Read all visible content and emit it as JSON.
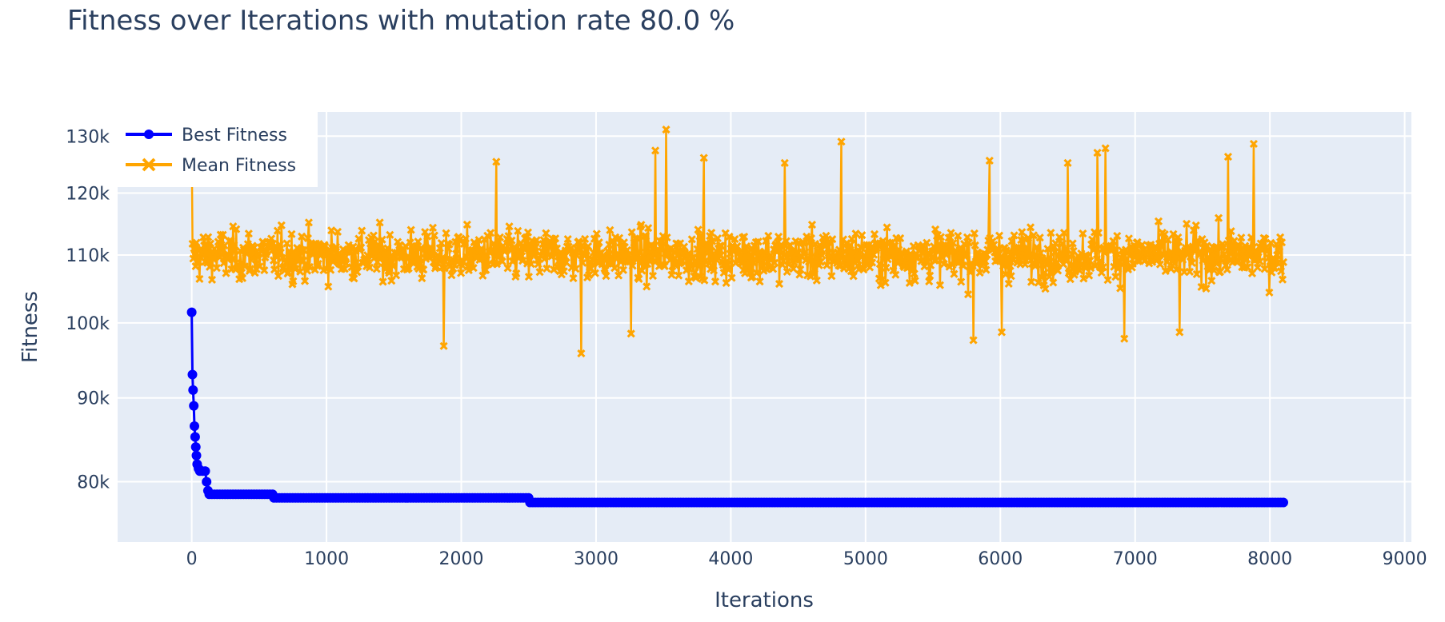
{
  "chart_data": {
    "type": "line",
    "title": "Fitness over Iterations with mutation rate 80.0 %",
    "xlabel": "Iterations",
    "ylabel": "Fitness",
    "xlim": [
      -550,
      9050
    ],
    "ylim": [
      73500,
      134500
    ],
    "y_scale": "log",
    "grid": true,
    "legend_position": "top-left",
    "x_ticks": [
      0,
      1000,
      2000,
      3000,
      4000,
      5000,
      6000,
      7000,
      8000,
      9000
    ],
    "x_tick_labels": [
      "0",
      "1000",
      "2000",
      "3000",
      "4000",
      "5000",
      "6000",
      "7000",
      "8000",
      "9000"
    ],
    "y_ticks": [
      80000,
      90000,
      100000,
      110000,
      120000,
      130000
    ],
    "y_tick_labels": [
      "80k",
      "90k",
      "100k",
      "110k",
      "120k",
      "130k"
    ],
    "series": [
      {
        "name": "Best Fitness",
        "color": "#0000ff",
        "marker": "circle",
        "x": [
          0,
          5,
          10,
          15,
          20,
          25,
          30,
          35,
          40,
          50,
          60,
          80,
          100,
          110,
          120,
          130,
          600,
          610,
          2500,
          2510,
          8100
        ],
        "y": [
          101500,
          93000,
          91000,
          89000,
          86500,
          85200,
          84000,
          83000,
          82000,
          81500,
          81200,
          81200,
          81200,
          80000,
          79000,
          78600,
          78600,
          78200,
          78200,
          77700,
          77700
        ]
      },
      {
        "name": "Mean Fitness",
        "color": "#ffa500",
        "marker": "x",
        "x_range": [
          0,
          8100
        ],
        "point_count": 8100,
        "typical_band": [
          101000,
          120000
        ],
        "center": 110000,
        "min_points": [
          {
            "x": 2890,
            "y": 95800
          },
          {
            "x": 1870,
            "y": 96800
          },
          {
            "x": 5800,
            "y": 97600
          },
          {
            "x": 6920,
            "y": 97800
          },
          {
            "x": 3260,
            "y": 98500
          },
          {
            "x": 7330,
            "y": 98700
          },
          {
            "x": 6010,
            "y": 98700
          }
        ],
        "max_points": [
          {
            "x": 3520,
            "y": 131200
          },
          {
            "x": 0,
            "y": 128500
          },
          {
            "x": 4820,
            "y": 129000
          },
          {
            "x": 7880,
            "y": 128600
          },
          {
            "x": 6780,
            "y": 127800
          },
          {
            "x": 3440,
            "y": 127400
          },
          {
            "x": 6720,
            "y": 127000
          },
          {
            "x": 7690,
            "y": 126300
          },
          {
            "x": 3800,
            "y": 126100
          },
          {
            "x": 5920,
            "y": 125600
          },
          {
            "x": 2260,
            "y": 125400
          },
          {
            "x": 4400,
            "y": 125200
          },
          {
            "x": 6500,
            "y": 125200
          }
        ]
      }
    ]
  }
}
